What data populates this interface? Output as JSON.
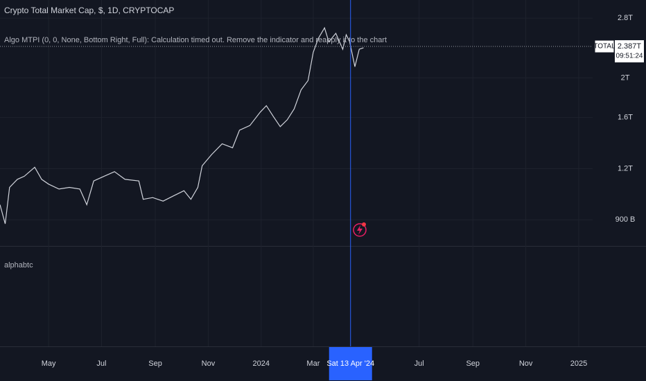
{
  "chart_data": {
    "type": "line",
    "title": "Crypto Total Market Cap, $, 1D, CRYPTOCAP",
    "indicator_note": "Algo MTPI (0, 0, None, Bottom Right, Full): Calculation timed out. Remove the indicator and reapply it to the chart",
    "lower_pane_label": "alphabtc",
    "log_scale": true,
    "grid": true,
    "xlim": [
      "2023-03-06",
      "2025-01-17"
    ],
    "xticks": [
      {
        "value": "2023-05-01",
        "label": "May"
      },
      {
        "value": "2023-07-01",
        "label": "Jul"
      },
      {
        "value": "2023-09-01",
        "label": "Sep"
      },
      {
        "value": "2023-11-01",
        "label": "Nov"
      },
      {
        "value": "2024-01-01",
        "label": "2024"
      },
      {
        "value": "2024-03-01",
        "label": "Mar"
      },
      {
        "value": "2024-07-01",
        "label": "Jul"
      },
      {
        "value": "2024-09-01",
        "label": "Sep"
      },
      {
        "value": "2024-11-01",
        "label": "Nov"
      },
      {
        "value": "2025-01-01",
        "label": "2025"
      }
    ],
    "ylim": [
      0.777,
      3.1
    ],
    "yticks": [
      {
        "value": 2.8,
        "label": "2.8T"
      },
      {
        "value": 2,
        "label": "2T"
      },
      {
        "value": 1.6,
        "label": "1.6T"
      },
      {
        "value": 1.2,
        "label": "1.2T"
      },
      {
        "value": 0.9,
        "label": "900 B"
      }
    ],
    "x": [
      "2023-03-06",
      "2023-03-12",
      "2023-03-17",
      "2023-03-26",
      "2023-04-03",
      "2023-04-15",
      "2023-04-23",
      "2023-05-01",
      "2023-05-13",
      "2023-05-25",
      "2023-06-06",
      "2023-06-14",
      "2023-06-22",
      "2023-07-04",
      "2023-07-16",
      "2023-07-28",
      "2023-08-13",
      "2023-08-18",
      "2023-08-29",
      "2023-09-10",
      "2023-09-22",
      "2023-10-04",
      "2023-10-12",
      "2023-10-20",
      "2023-10-25",
      "2023-11-05",
      "2023-11-17",
      "2023-11-29",
      "2023-12-07",
      "2023-12-19",
      "2023-12-31",
      "2024-01-07",
      "2024-01-15",
      "2024-01-23",
      "2024-01-31",
      "2024-02-08",
      "2024-02-16",
      "2024-02-24",
      "2024-03-01",
      "2024-03-07",
      "2024-03-14",
      "2024-03-19",
      "2024-03-27",
      "2024-04-04",
      "2024-04-08",
      "2024-04-12",
      "2024-04-18",
      "2024-04-23",
      "2024-04-28"
    ],
    "series": [
      {
        "name": "TOTAL",
        "color": "#d1d4dc",
        "values": [
          0.98,
          0.88,
          1.08,
          1.13,
          1.15,
          1.21,
          1.13,
          1.1,
          1.07,
          1.08,
          1.07,
          0.98,
          1.12,
          1.15,
          1.18,
          1.13,
          1.12,
          1.01,
          1.02,
          1.0,
          1.03,
          1.06,
          1.01,
          1.08,
          1.22,
          1.3,
          1.38,
          1.35,
          1.49,
          1.53,
          1.65,
          1.71,
          1.61,
          1.52,
          1.58,
          1.68,
          1.87,
          1.97,
          2.31,
          2.5,
          2.65,
          2.45,
          2.57,
          2.35,
          2.55,
          2.45,
          2.13,
          2.35,
          2.37
        ]
      }
    ],
    "last_price": {
      "value": 2.387,
      "label": "2.387T"
    },
    "countdown": "09:51:24",
    "crosshair": {
      "value": "2024-04-13",
      "label": "Sat 13 Apr '24"
    }
  }
}
